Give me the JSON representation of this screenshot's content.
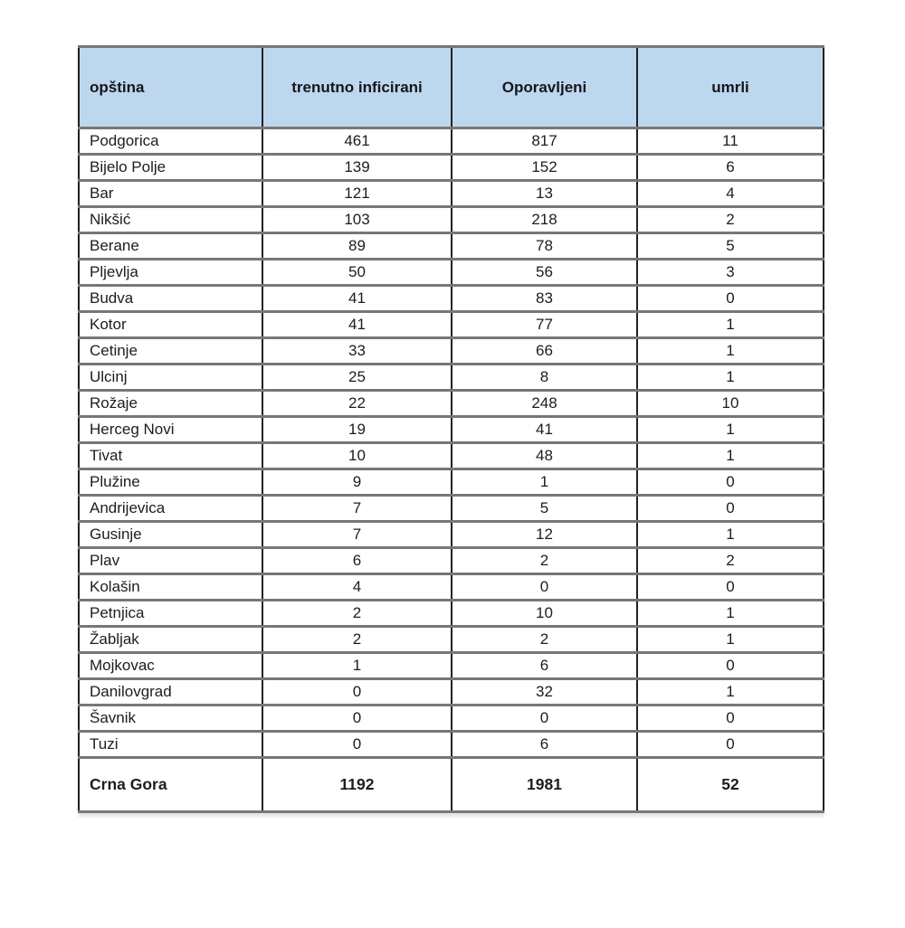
{
  "colors": {
    "header_bg": "#bdd7ee",
    "horizontal_border": "#777777",
    "vertical_border": "#222222",
    "text": "#1d1d1d",
    "page_bg": "#ffffff"
  },
  "table": {
    "columns": [
      {
        "key": "opstina",
        "label": "opština"
      },
      {
        "key": "trenutno_inficirani",
        "label": "trenutno inficirani"
      },
      {
        "key": "oporavljeni",
        "label": "Oporavljeni"
      },
      {
        "key": "umrli",
        "label": "umrli"
      }
    ],
    "rows": [
      [
        "Podgorica",
        "461",
        "817",
        "11"
      ],
      [
        "Bijelo Polje",
        "139",
        "152",
        "6"
      ],
      [
        "Bar",
        "121",
        "13",
        "4"
      ],
      [
        "Nikšić",
        "103",
        "218",
        "2"
      ],
      [
        "Berane",
        "89",
        "78",
        "5"
      ],
      [
        "Pljevlja",
        "50",
        "56",
        "3"
      ],
      [
        "Budva",
        "41",
        "83",
        "0"
      ],
      [
        "Kotor",
        "41",
        "77",
        "1"
      ],
      [
        "Cetinje",
        "33",
        "66",
        "1"
      ],
      [
        "Ulcinj",
        "25",
        "8",
        "1"
      ],
      [
        "Rožaje",
        "22",
        "248",
        "10"
      ],
      [
        "Herceg Novi",
        "19",
        "41",
        "1"
      ],
      [
        "Tivat",
        "10",
        "48",
        "1"
      ],
      [
        "Plužine",
        "9",
        "1",
        "0"
      ],
      [
        "Andrijevica",
        "7",
        "5",
        "0"
      ],
      [
        "Gusinje",
        "7",
        "12",
        "1"
      ],
      [
        "Plav",
        "6",
        "2",
        "2"
      ],
      [
        "Kolašin",
        "4",
        "0",
        "0"
      ],
      [
        "Petnjica",
        "2",
        "10",
        "1"
      ],
      [
        "Žabljak",
        "2",
        "2",
        "1"
      ],
      [
        "Mojkovac",
        "1",
        "6",
        "0"
      ],
      [
        "Danilovgrad",
        "0",
        "32",
        "1"
      ],
      [
        "Šavnik",
        "0",
        "0",
        "0"
      ],
      [
        "Tuzi",
        "0",
        "6",
        "0"
      ]
    ],
    "total_row": [
      "Crna Gora",
      "1192",
      "1981",
      "52"
    ]
  },
  "chart_data": {
    "type": "table",
    "title": "",
    "columns": [
      "opština",
      "trenutno inficirani",
      "Oporavljeni",
      "umrli"
    ],
    "categories": [
      "Podgorica",
      "Bijelo Polje",
      "Bar",
      "Nikšić",
      "Berane",
      "Pljevlja",
      "Budva",
      "Kotor",
      "Cetinje",
      "Ulcinj",
      "Rožaje",
      "Herceg Novi",
      "Tivat",
      "Plužine",
      "Andrijevica",
      "Gusinje",
      "Plav",
      "Kolašin",
      "Petnjica",
      "Žabljak",
      "Mojkovac",
      "Danilovgrad",
      "Šavnik",
      "Tuzi"
    ],
    "series": [
      {
        "name": "trenutno inficirani",
        "values": [
          461,
          139,
          121,
          103,
          89,
          50,
          41,
          41,
          33,
          25,
          22,
          19,
          10,
          9,
          7,
          7,
          6,
          4,
          2,
          2,
          1,
          0,
          0,
          0
        ]
      },
      {
        "name": "Oporavljeni",
        "values": [
          817,
          152,
          13,
          218,
          78,
          56,
          83,
          77,
          66,
          8,
          248,
          41,
          48,
          1,
          5,
          12,
          2,
          0,
          10,
          2,
          6,
          32,
          0,
          6
        ]
      },
      {
        "name": "umrli",
        "values": [
          11,
          6,
          4,
          2,
          5,
          3,
          0,
          1,
          1,
          1,
          10,
          1,
          1,
          0,
          0,
          1,
          2,
          0,
          1,
          1,
          0,
          1,
          0,
          0
        ]
      }
    ],
    "total": {
      "name": "Crna Gora",
      "values": [
        1192,
        1981,
        52
      ]
    }
  }
}
